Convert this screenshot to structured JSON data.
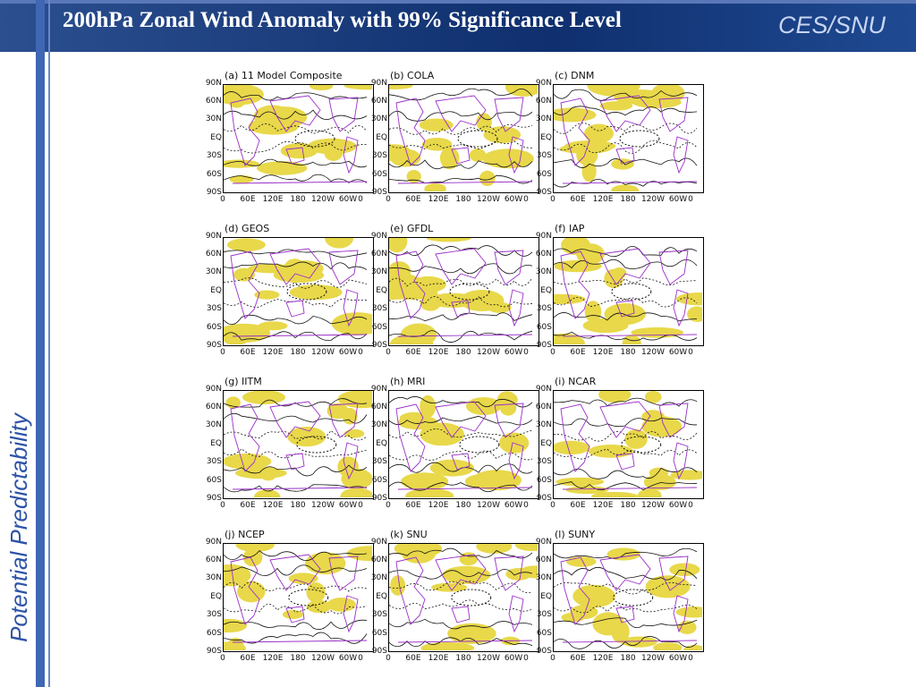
{
  "slide": {
    "title": "200hPa Zonal Wind  Anomaly with 99% Significance Level",
    "brand": "CES/SNU",
    "side_label": "Potential  Predictability"
  },
  "axes": {
    "lat_ticks": [
      "90N",
      "60N",
      "30N",
      "EQ",
      "30S",
      "60S",
      "90S"
    ],
    "lon_ticks": [
      "0",
      "60E",
      "120E",
      "180",
      "120W",
      "60W",
      "0"
    ]
  },
  "panels": [
    {
      "title": "(a)  11  Model  Composite"
    },
    {
      "title": "(b)  COLA"
    },
    {
      "title": "(c)  DNM"
    },
    {
      "title": "(d)  GEOS"
    },
    {
      "title": "(e)  GFDL"
    },
    {
      "title": "(f)  IAP"
    },
    {
      "title": "(g)  IITM"
    },
    {
      "title": "(h)  MRI"
    },
    {
      "title": "(i)  NCAR"
    },
    {
      "title": "(j)  NCEP"
    },
    {
      "title": "(k)  SNU"
    },
    {
      "title": "(l)  SUNY"
    }
  ],
  "colors": {
    "significance_shading": "#e8d84a",
    "coastline": "#9b2fc9",
    "contour": "#111111",
    "header": "#0f2f6e",
    "side_text": "#2d53a6"
  }
}
